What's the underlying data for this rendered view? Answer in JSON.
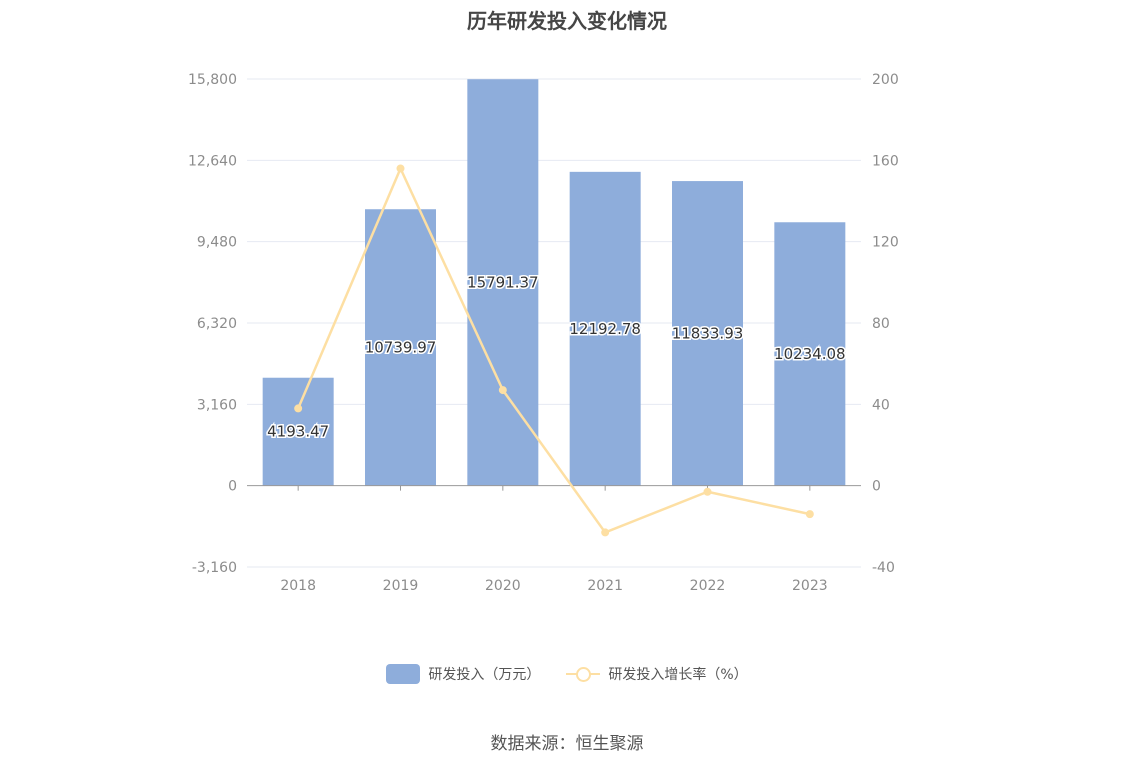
{
  "chart_data": {
    "type": "bar",
    "title": "历年研发投入变化情况",
    "categories": [
      "2018",
      "2019",
      "2020",
      "2021",
      "2022",
      "2023"
    ],
    "series": [
      {
        "name": "研发投入（万元）",
        "type": "bar",
        "axis": "left",
        "color": "#8eaddb",
        "values": [
          4193.47,
          10739.97,
          15791.37,
          12192.78,
          11833.93,
          10234.08
        ],
        "labels": [
          "4193.47",
          "10739.97",
          "15791.37",
          "12192.78",
          "11833.93",
          "10234.08"
        ]
      },
      {
        "name": "研发投入增长率（%）",
        "type": "line",
        "axis": "right",
        "color": "#fddfa3",
        "values": [
          38,
          156,
          47,
          -23,
          -3,
          -14
        ]
      }
    ],
    "y_left": {
      "min": -3160,
      "max": 15800,
      "ticks": [
        -3160,
        0,
        3160,
        6320,
        9480,
        12640,
        15800
      ],
      "tick_labels": [
        "-3,160",
        "0",
        "3,160",
        "6,320",
        "9,480",
        "12,640",
        "15,800"
      ]
    },
    "y_right": {
      "min": -40,
      "max": 200,
      "ticks": [
        -40,
        0,
        40,
        80,
        120,
        160,
        200
      ],
      "tick_labels": [
        "-40",
        "0",
        "40",
        "80",
        "120",
        "160",
        "200"
      ]
    },
    "grid": true,
    "legend_position": "bottom-center",
    "colors": {
      "bar": "#8eaddb",
      "line": "#fddfa3",
      "grid": "#e6e9f2",
      "axis": "#999999",
      "tick_text": "#8c8c8c"
    }
  },
  "legend": {
    "bar_label": "研发投入（万元）",
    "line_label": "研发投入增长率（%）"
  },
  "source": "数据来源：恒生聚源"
}
